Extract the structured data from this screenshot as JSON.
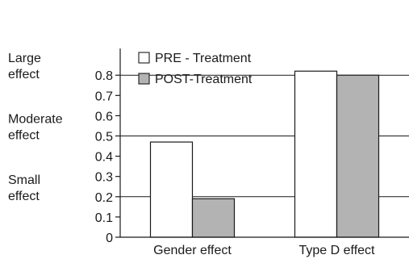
{
  "chart_data": {
    "type": "bar",
    "categories": [
      "Gender effect",
      "Type D effect"
    ],
    "series": [
      {
        "name": "PRE - Treatment",
        "values": [
          0.47,
          0.82
        ],
        "color": "#ffffff"
      },
      {
        "name": "POST-Treatment",
        "values": [
          0.19,
          0.8
        ],
        "color": "#b3b3b3"
      }
    ],
    "ylim": [
      0,
      0.9
    ],
    "yticks": [
      "0",
      "0.1",
      "0.2",
      "0.3",
      "0.4",
      "0.5",
      "0.6",
      "0.7",
      "0.8"
    ],
    "reference_lines": [
      0.2,
      0.5,
      0.8
    ],
    "effect_labels": [
      {
        "lines": [
          "Small",
          "effect"
        ],
        "value": 0.2
      },
      {
        "lines": [
          "Moderate",
          "effect"
        ],
        "value": 0.5
      },
      {
        "lines": [
          "Large",
          "effect"
        ],
        "value": 0.8
      }
    ],
    "legend_position": "upper-left inside plot",
    "grid": false,
    "title": "",
    "xlabel": "",
    "ylabel": ""
  }
}
